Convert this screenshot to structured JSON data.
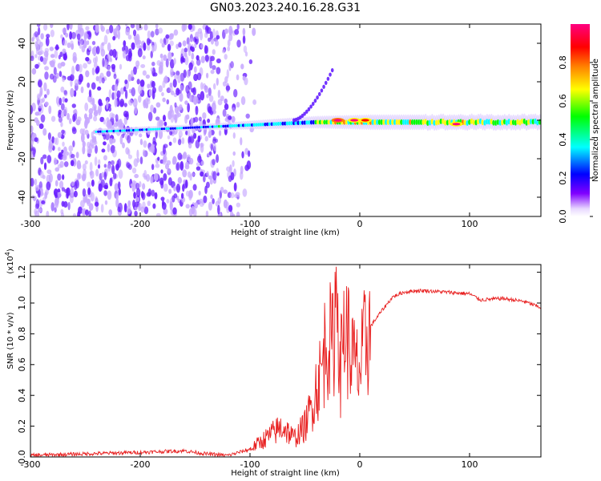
{
  "figure": {
    "title": "GN03.2023.240.16.28.G31"
  },
  "chart_data": [
    {
      "type": "heatmap",
      "title": "",
      "xlabel": "Height of straight line (km)",
      "ylabel": "Frequency (Hz)",
      "xlim": [
        -300,
        165
      ],
      "ylim": [
        -50,
        50
      ],
      "x_ticks": [
        -300,
        -200,
        -100,
        0,
        100
      ],
      "y_ticks": [
        -40,
        -20,
        0,
        20,
        40
      ],
      "colorbar": {
        "label": "Normalized spectral amplitude",
        "range": [
          0,
          1
        ],
        "ticks": [
          0.0,
          0.2,
          0.4,
          0.6,
          0.8
        ],
        "colors": [
          "#ffffff",
          "#8000ff",
          "#0000ff",
          "#00ffff",
          "#00ff00",
          "#ffff00",
          "#ff8000",
          "#ff0000",
          "#ff0080"
        ]
      },
      "features": {
        "noise_region_x": [
          -300,
          -100
        ],
        "ridge_center_freq_hz": 0,
        "peak_amplitude_region_x": [
          -25,
          5
        ],
        "spur": {
          "x": [
            -60,
            -25
          ],
          "y": [
            0,
            26
          ]
        },
        "strong_points": [
          {
            "x": -20,
            "y": 0,
            "amp": 1.0
          },
          {
            "x": -5,
            "y": 0,
            "amp": 0.95
          },
          {
            "x": 5,
            "y": 0,
            "amp": 0.9
          },
          {
            "x": 88,
            "y": -2,
            "amp": 0.95
          }
        ]
      }
    },
    {
      "type": "line",
      "title": "",
      "xlabel": "Height of straight line (km)",
      "ylabel": "SNR (10 * v/v)",
      "y_multiplier": "(x10",
      "y_multiplier_exp": "4",
      "y_multiplier_close": ")",
      "xlim": [
        -300,
        165
      ],
      "ylim": [
        0,
        1.25
      ],
      "x_ticks": [
        -300,
        -200,
        -100,
        0,
        100
      ],
      "y_ticks": [
        0.0,
        0.2,
        0.4,
        0.6,
        0.8,
        1.0,
        1.2
      ],
      "series": [
        {
          "color": "#e82020",
          "x": [
            -300,
            -250,
            -200,
            -160,
            -140,
            -120,
            -100,
            -90,
            -80,
            -70,
            -60,
            -50,
            -45,
            -40,
            -35,
            -30,
            -25,
            -20,
            -18,
            -15,
            -10,
            -5,
            0,
            5,
            10,
            20,
            30,
            40,
            50,
            60,
            80,
            100,
            110,
            130,
            150,
            165
          ],
          "y": [
            0.01,
            0.02,
            0.03,
            0.04,
            0.02,
            0.01,
            0.05,
            0.1,
            0.15,
            0.2,
            0.12,
            0.2,
            0.3,
            0.45,
            0.55,
            0.8,
            0.7,
            1.2,
            0.5,
            0.85,
            0.75,
            0.6,
            0.55,
            0.75,
            0.85,
            0.95,
            1.04,
            1.07,
            1.08,
            1.08,
            1.07,
            1.06,
            1.02,
            1.03,
            1.01,
            0.97
          ]
        }
      ]
    }
  ]
}
